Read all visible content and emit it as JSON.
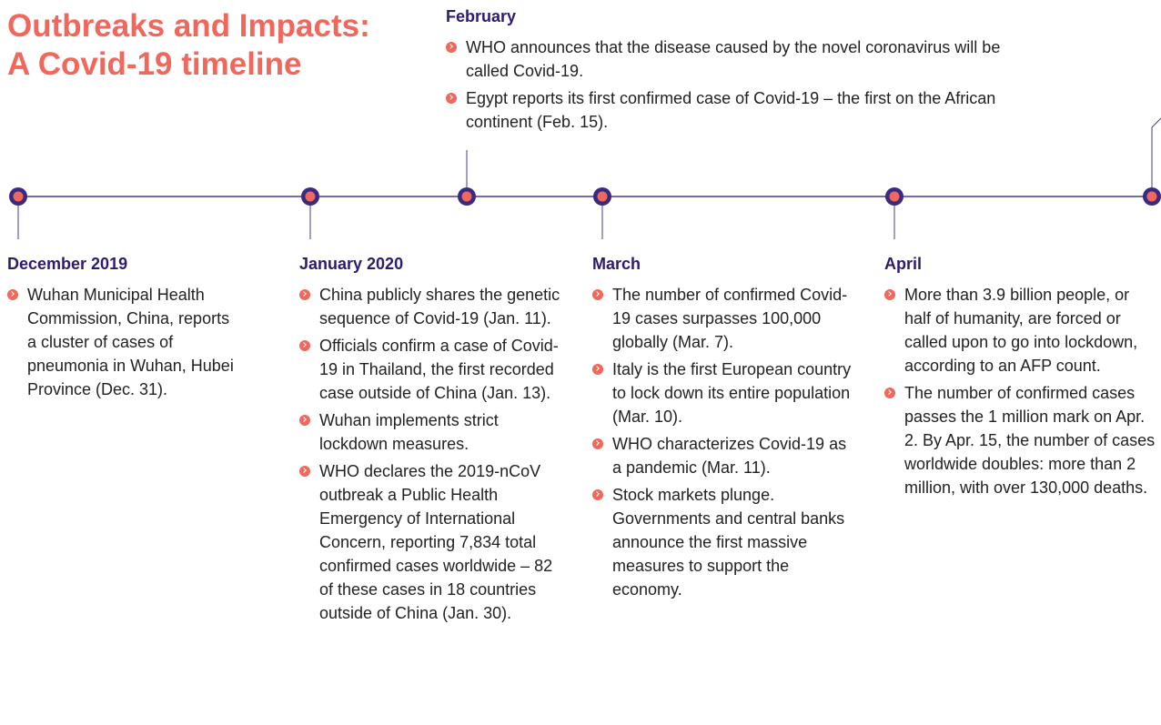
{
  "title": [
    "Outbreaks and Impacts:",
    "A Covid-19 timeline"
  ],
  "events": [
    {
      "label": "December 2019",
      "items": [
        "Wuhan Municipal Health Commission, China, reports a cluster of cases of pneumonia in Wuhan, Hubei Province (Dec. 31)."
      ]
    },
    {
      "label": "January 2020",
      "items": [
        "China publicly shares the genetic sequence of Covid-19 (Jan. 11).",
        "Officials confirm a case of Covid-19 in Thailand, the first recorded case outside of China (Jan. 13).",
        "Wuhan implements strict lockdown measures.",
        "WHO declares the 2019-nCoV outbreak a Public Health Emergency of International Concern, reporting 7,834 total confirmed cases worldwide – 82 of these cases in 18 countries outside of China (Jan. 30)."
      ]
    },
    {
      "label": "February",
      "items": [
        "WHO announces that the disease caused by the novel coronavirus will be called Covid-19.",
        "Egypt reports its first confirmed case of Covid-19 – the first on the African continent (Feb. 15)."
      ]
    },
    {
      "label": "March",
      "items": [
        "The number of confirmed Covid-19 cases surpasses 100,000 globally (Mar. 7).",
        "Italy is the first European country to lock down its entire population (Mar. 10).",
        "WHO characterizes Covid-19 as a pandemic (Mar. 11).",
        "Stock markets plunge. Governments and central banks announce the first massive measures to support the economy."
      ]
    },
    {
      "label": "April",
      "items": [
        "More than 3.9 billion people, or half of humanity, are forced or called upon to go into lockdown, according to an AFP count.",
        "The number of confirmed cases passes the 1 million mark on Apr. 2. By Apr. 15, the number of cases worldwide doubles: more than 2 million, with over 130,000 deaths."
      ]
    }
  ]
}
